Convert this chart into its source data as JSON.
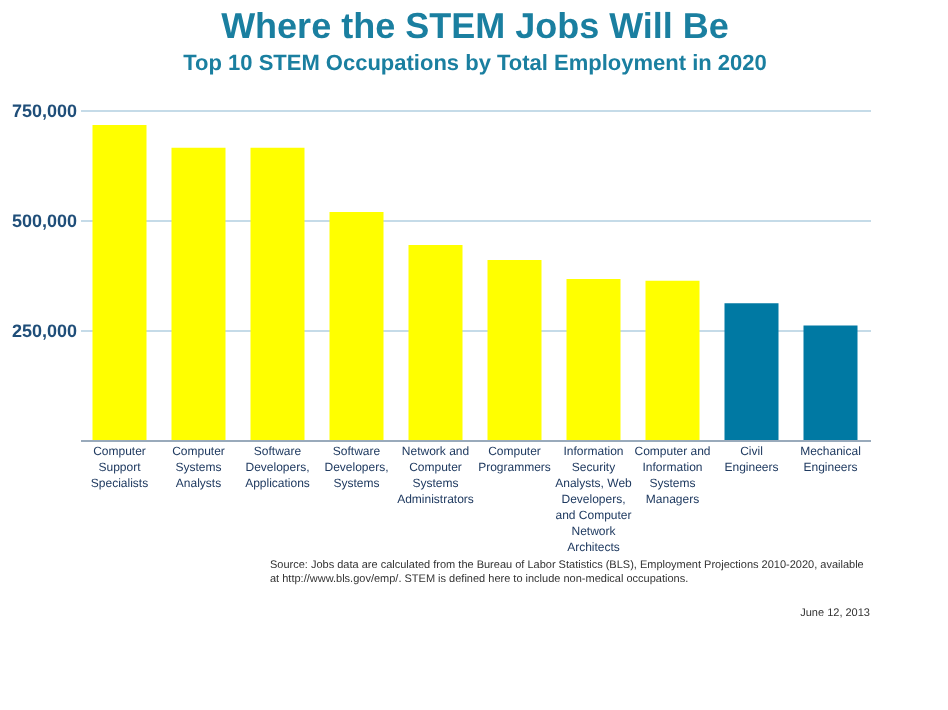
{
  "chart_data": {
    "type": "bar",
    "title": "Where the STEM Jobs Will Be",
    "subtitle": "Top 10 STEM Occupations by Total Employment in 2020",
    "categories": [
      "Computer Support Specialists",
      "Computer Systems Analysts",
      "Software Developers, Applications",
      "Software Developers, Systems",
      "Network and Computer Systems Administrators",
      "Computer Programmers",
      "Information Security Analysts, Web Developers, and Computer Network Architects",
      "Computer and Information Systems Managers",
      "Civil Engineers",
      "Mechanical Engineers"
    ],
    "values": [
      716000,
      664000,
      664000,
      518000,
      443000,
      409000,
      366000,
      362000,
      311000,
      260000
    ],
    "colors": [
      "#ffff00",
      "#ffff00",
      "#ffff00",
      "#ffff00",
      "#ffff00",
      "#ffff00",
      "#ffff00",
      "#ffff00",
      "#0079a3",
      "#0079a3"
    ],
    "ylim": [
      0,
      750000
    ],
    "yticks": [
      {
        "value": 250000,
        "label": "250,000"
      },
      {
        "value": 500000,
        "label": "500,000"
      },
      {
        "value": 750000,
        "label": "750,000"
      }
    ],
    "grid": "y",
    "annotations": [
      "Source: Jobs data are calculated from the Bureau of Labor Statistics (BLS), Employment Projections 2010-2020, available at http://www.bls.gov/emp/. STEM is defined here to include non-medical occupations.",
      "June 12, 2013"
    ]
  }
}
